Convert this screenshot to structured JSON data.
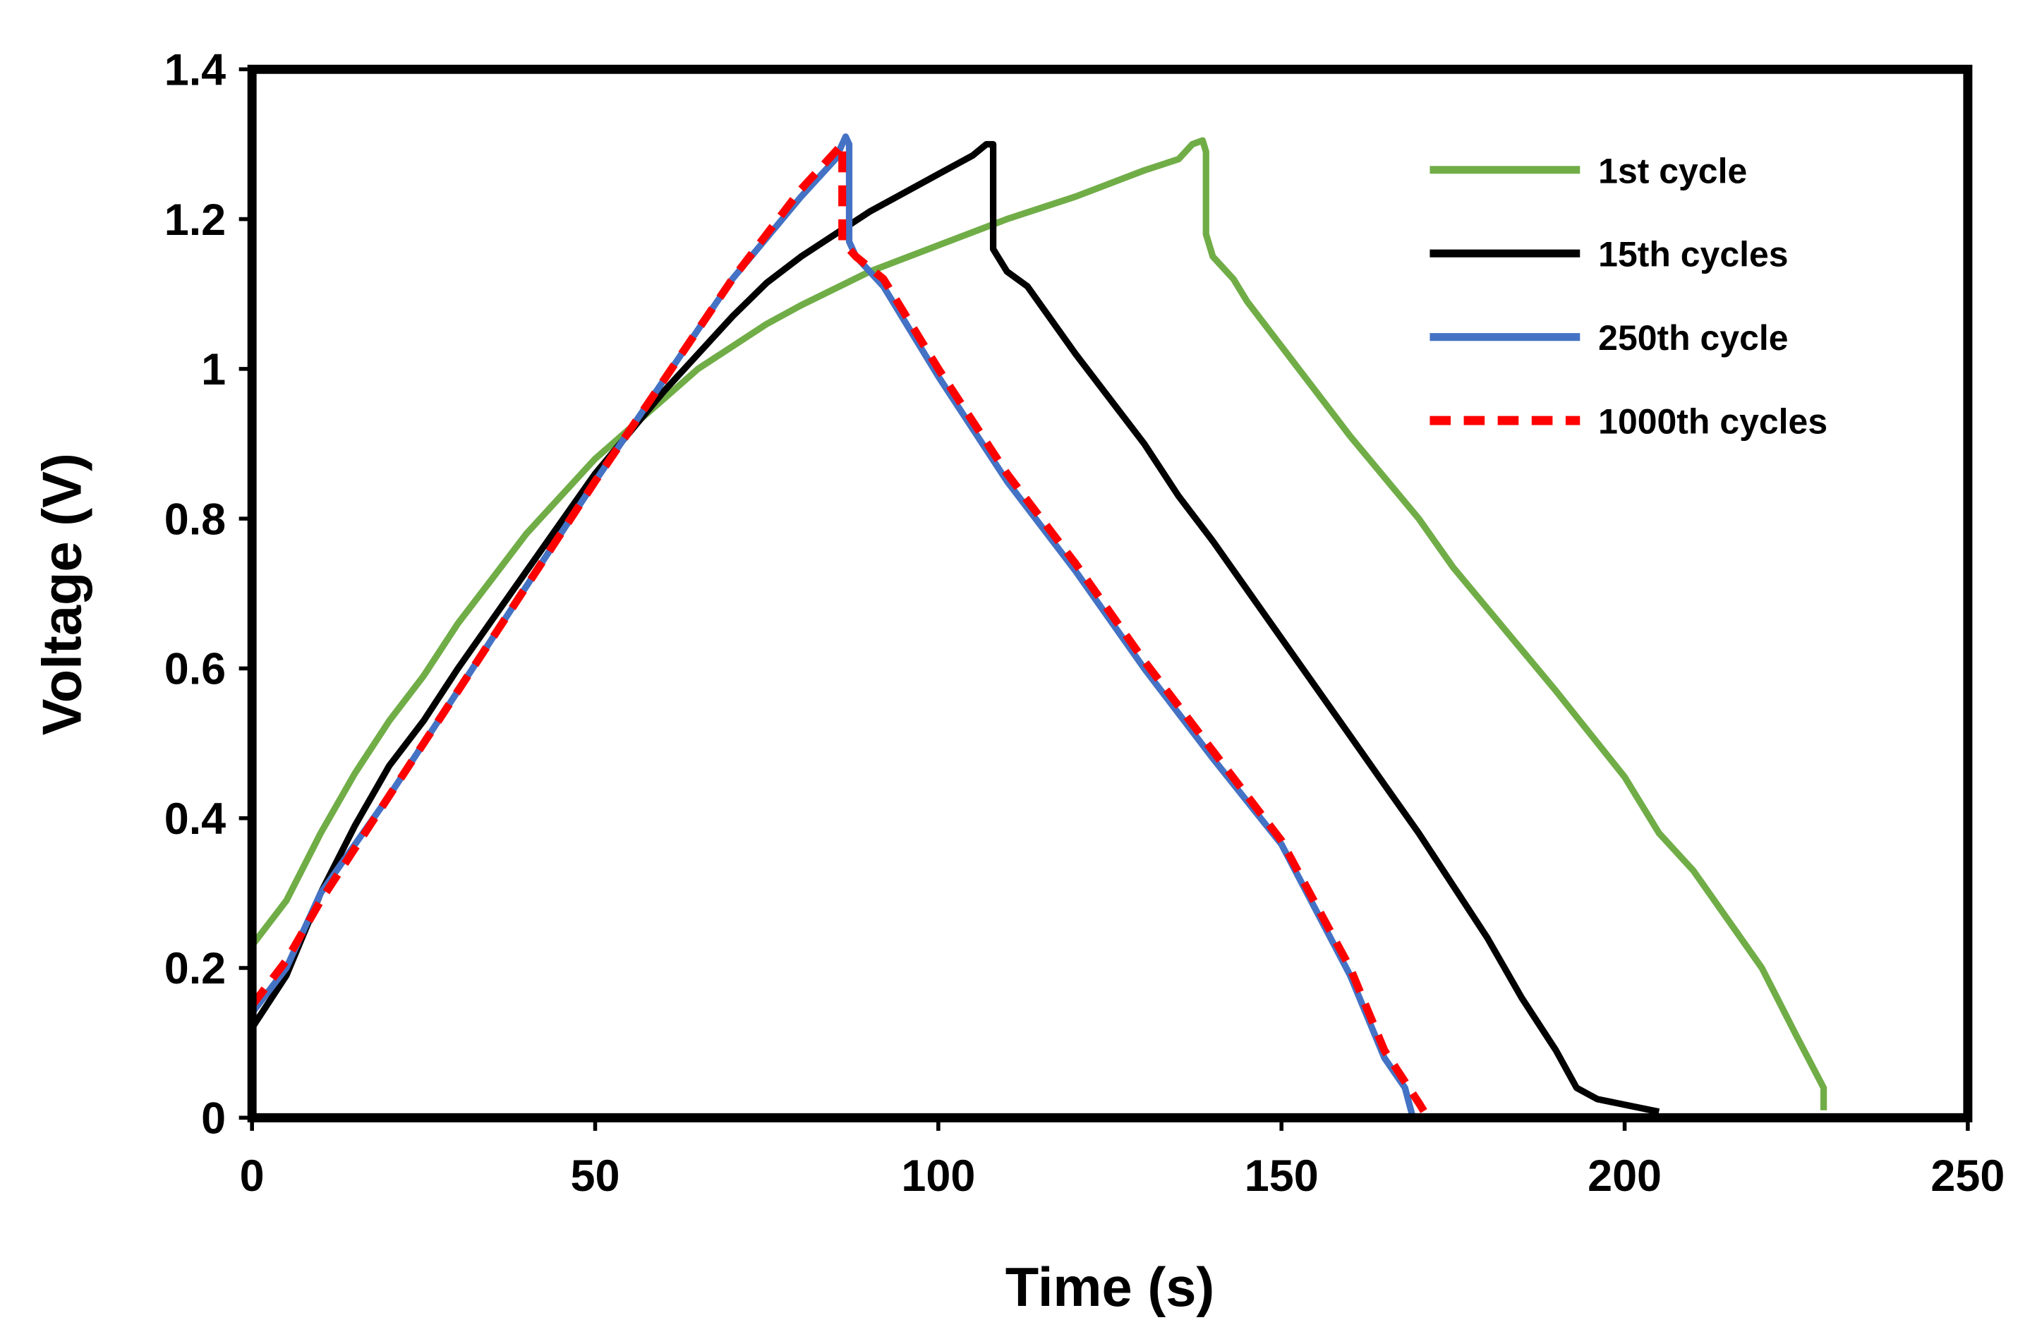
{
  "chart_data": {
    "type": "line",
    "title": "",
    "xlabel": "Time (s)",
    "ylabel": "Voltage (V)",
    "xlim": [
      0,
      250
    ],
    "ylim": [
      0,
      1.4
    ],
    "xticks": [
      "0",
      "50",
      "100",
      "150",
      "200",
      "250"
    ],
    "xtick_values": [
      0,
      50,
      100,
      150,
      200,
      250
    ],
    "yticks": [
      "0",
      "0.2",
      "0.4",
      "0.6",
      "0.8",
      "1",
      "1.2",
      "1.4"
    ],
    "ytick_values": [
      0,
      0.2,
      0.4,
      0.6,
      0.8,
      1.0,
      1.2,
      1.4
    ],
    "grid": false,
    "legend_position": "top-right",
    "series": [
      {
        "name": "1st cycle",
        "color": "#70AD47",
        "dash": false,
        "points": [
          [
            0,
            0.23
          ],
          [
            5,
            0.29
          ],
          [
            10,
            0.38
          ],
          [
            15,
            0.46
          ],
          [
            20,
            0.53
          ],
          [
            25,
            0.59
          ],
          [
            30,
            0.66
          ],
          [
            35,
            0.72
          ],
          [
            40,
            0.78
          ],
          [
            45,
            0.83
          ],
          [
            50,
            0.88
          ],
          [
            55,
            0.92
          ],
          [
            60,
            0.96
          ],
          [
            65,
            1.0
          ],
          [
            70,
            1.03
          ],
          [
            75,
            1.06
          ],
          [
            80,
            1.085
          ],
          [
            90,
            1.13
          ],
          [
            100,
            1.165
          ],
          [
            110,
            1.2
          ],
          [
            120,
            1.23
          ],
          [
            130,
            1.265
          ],
          [
            135,
            1.28
          ],
          [
            137,
            1.3
          ],
          [
            138.5,
            1.305
          ],
          [
            139,
            1.29
          ],
          [
            139,
            1.18
          ],
          [
            140,
            1.15
          ],
          [
            143,
            1.12
          ],
          [
            145,
            1.09
          ],
          [
            150,
            1.03
          ],
          [
            160,
            0.91
          ],
          [
            170,
            0.8
          ],
          [
            175,
            0.735
          ],
          [
            180,
            0.68
          ],
          [
            190,
            0.57
          ],
          [
            200,
            0.455
          ],
          [
            205,
            0.38
          ],
          [
            210,
            0.33
          ],
          [
            220,
            0.2
          ],
          [
            225,
            0.11
          ],
          [
            229,
            0.04
          ],
          [
            229,
            0.01
          ]
        ]
      },
      {
        "name": "15th cycles",
        "color": "#000000",
        "dash": false,
        "points": [
          [
            0,
            0.12
          ],
          [
            5,
            0.19
          ],
          [
            10,
            0.3
          ],
          [
            15,
            0.39
          ],
          [
            20,
            0.47
          ],
          [
            25,
            0.53
          ],
          [
            30,
            0.6
          ],
          [
            40,
            0.73
          ],
          [
            50,
            0.86
          ],
          [
            60,
            0.97
          ],
          [
            70,
            1.07
          ],
          [
            75,
            1.115
          ],
          [
            80,
            1.15
          ],
          [
            90,
            1.21
          ],
          [
            100,
            1.26
          ],
          [
            105,
            1.285
          ],
          [
            107,
            1.3
          ],
          [
            108,
            1.3
          ],
          [
            108,
            1.16
          ],
          [
            110,
            1.13
          ],
          [
            113,
            1.11
          ],
          [
            120,
            1.02
          ],
          [
            130,
            0.9
          ],
          [
            135,
            0.83
          ],
          [
            140,
            0.77
          ],
          [
            150,
            0.64
          ],
          [
            160,
            0.51
          ],
          [
            165,
            0.445
          ],
          [
            170,
            0.38
          ],
          [
            180,
            0.24
          ],
          [
            185,
            0.16
          ],
          [
            190,
            0.09
          ],
          [
            193,
            0.04
          ],
          [
            196,
            0.025
          ],
          [
            205,
            0.008
          ]
        ]
      },
      {
        "name": "250th cycle",
        "color": "#4472C4",
        "dash": false,
        "points": [
          [
            0,
            0.14
          ],
          [
            5,
            0.2
          ],
          [
            10,
            0.3
          ],
          [
            20,
            0.43
          ],
          [
            30,
            0.57
          ],
          [
            40,
            0.71
          ],
          [
            50,
            0.85
          ],
          [
            60,
            0.985
          ],
          [
            70,
            1.12
          ],
          [
            80,
            1.23
          ],
          [
            85,
            1.28
          ],
          [
            86.5,
            1.31
          ],
          [
            87,
            1.3
          ],
          [
            87,
            1.17
          ],
          [
            88,
            1.15
          ],
          [
            92,
            1.11
          ],
          [
            100,
            0.99
          ],
          [
            110,
            0.85
          ],
          [
            120,
            0.73
          ],
          [
            130,
            0.6
          ],
          [
            140,
            0.48
          ],
          [
            150,
            0.365
          ],
          [
            160,
            0.19
          ],
          [
            165,
            0.08
          ],
          [
            168,
            0.04
          ],
          [
            169,
            0.005
          ]
        ]
      },
      {
        "name": "1000th cycles",
        "color": "#FF0000",
        "dash": true,
        "points": [
          [
            0,
            0.15
          ],
          [
            5,
            0.21
          ],
          [
            10,
            0.29
          ],
          [
            20,
            0.43
          ],
          [
            30,
            0.57
          ],
          [
            40,
            0.71
          ],
          [
            50,
            0.85
          ],
          [
            60,
            0.985
          ],
          [
            70,
            1.12
          ],
          [
            80,
            1.24
          ],
          [
            85,
            1.29
          ],
          [
            86,
            1.3
          ],
          [
            86,
            1.17
          ],
          [
            88,
            1.15
          ],
          [
            92,
            1.12
          ],
          [
            100,
            1.0
          ],
          [
            110,
            0.86
          ],
          [
            120,
            0.74
          ],
          [
            130,
            0.61
          ],
          [
            140,
            0.49
          ],
          [
            150,
            0.37
          ],
          [
            160,
            0.2
          ],
          [
            165,
            0.09
          ],
          [
            170,
            0.02
          ],
          [
            171,
            0.005
          ]
        ]
      }
    ]
  }
}
